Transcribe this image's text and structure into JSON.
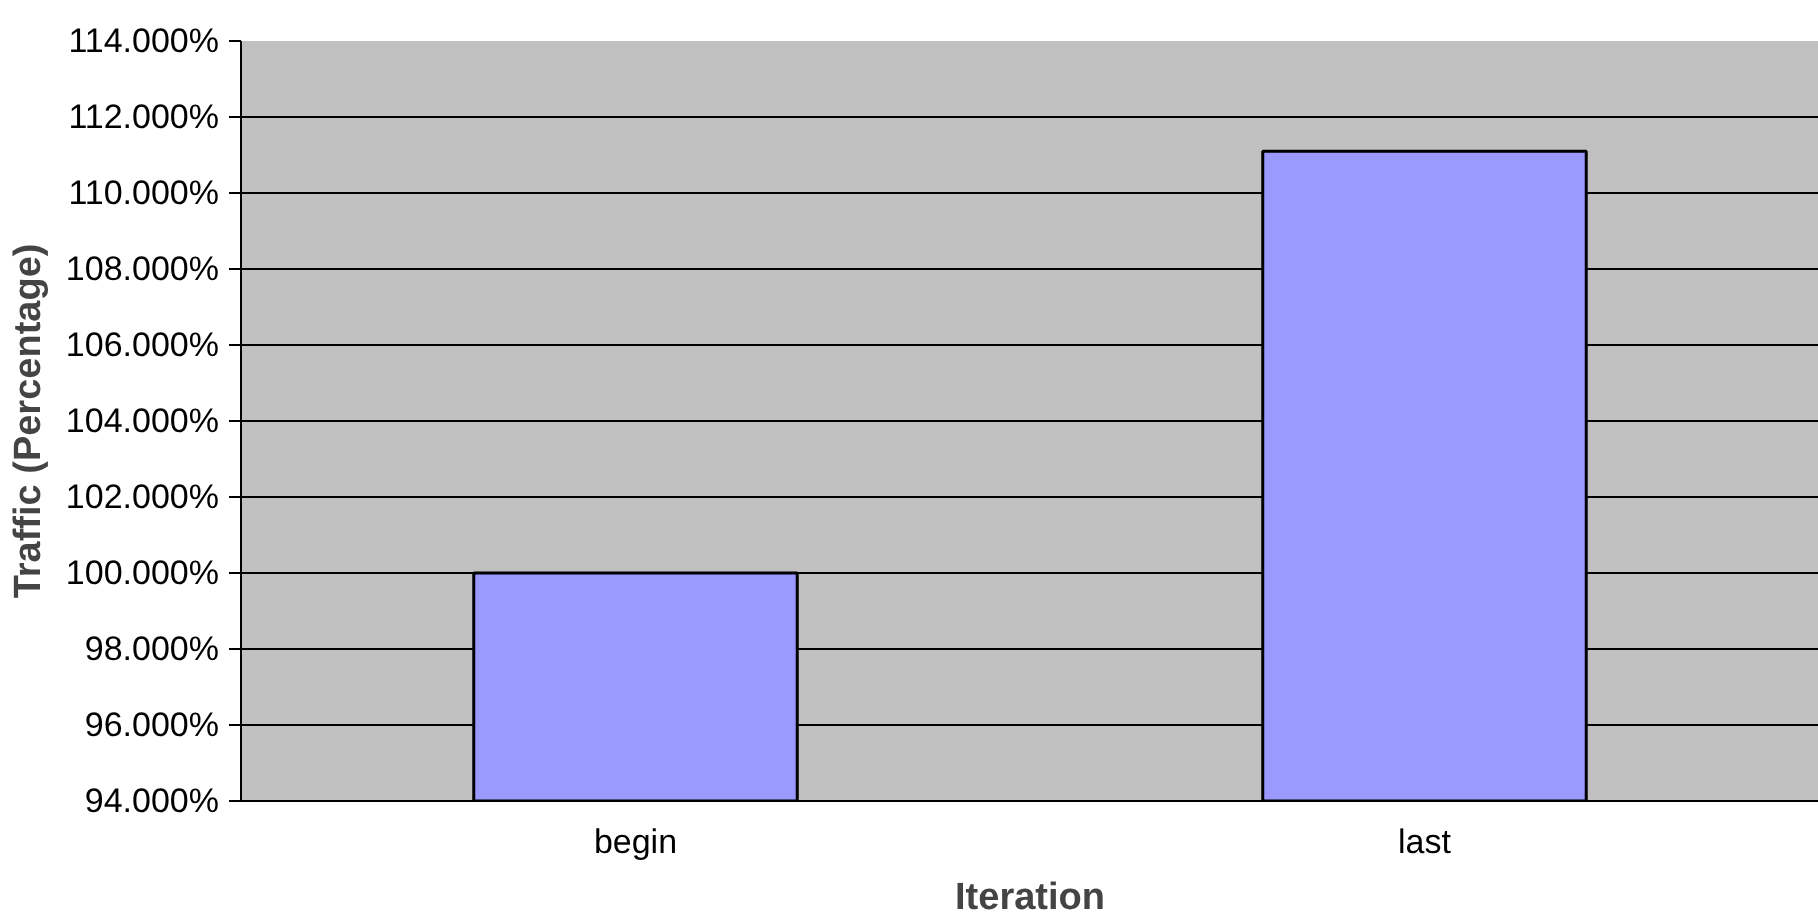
{
  "chart_data": {
    "type": "bar",
    "xlabel": "Iteration",
    "ylabel": "Traffic (Percentage)",
    "categories": [
      "begin",
      "last"
    ],
    "values": [
      100.0,
      111.1
    ],
    "color": "#9999ff",
    "ylim": [
      94,
      114
    ],
    "yticks": [
      {
        "value": 94,
        "label": "94.000%"
      },
      {
        "value": 96,
        "label": "96.000%"
      },
      {
        "value": 98,
        "label": "98.000%"
      },
      {
        "value": 100,
        "label": "100.000%"
      },
      {
        "value": 102,
        "label": "102.000%"
      },
      {
        "value": 104,
        "label": "104.000%"
      },
      {
        "value": 106,
        "label": "106.000%"
      },
      {
        "value": 108,
        "label": "108.000%"
      },
      {
        "value": 110,
        "label": "110.000%"
      },
      {
        "value": 112,
        "label": "112.000%"
      },
      {
        "value": 114,
        "label": "114.000%"
      }
    ],
    "grid": "y"
  }
}
